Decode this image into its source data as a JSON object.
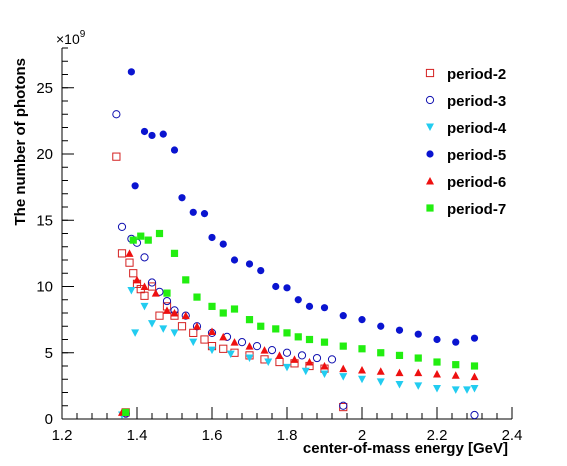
{
  "chart_data": {
    "type": "scatter",
    "title": "",
    "xlabel": "center-of-mass energy [GeV]",
    "ylabel": "The number of photons",
    "y_multiplier_label": "×10",
    "y_multiplier_exponent": "9",
    "xlim": [
      1.2,
      2.4
    ],
    "ylim": [
      0,
      28
    ],
    "x_ticks": [
      "1.2",
      "1.4",
      "1.6",
      "1.8",
      "2",
      "2.2",
      "2.4"
    ],
    "y_ticks": [
      "0",
      "5",
      "10",
      "15",
      "20",
      "25"
    ],
    "legend_position": "top-right",
    "grid": false,
    "series": [
      {
        "name": "period-2",
        "marker": "open-square",
        "color": "#d42020",
        "x": [
          1.345,
          1.36,
          1.37,
          1.38,
          1.39,
          1.4,
          1.41,
          1.42,
          1.44,
          1.46,
          1.48,
          1.5,
          1.52,
          1.55,
          1.58,
          1.6,
          1.63,
          1.66,
          1.7,
          1.74,
          1.78,
          1.82,
          1.86,
          1.9,
          1.95
        ],
        "y": [
          19.8,
          12.5,
          0.5,
          11.8,
          11.0,
          10.2,
          9.8,
          9.3,
          10.0,
          7.8,
          8.5,
          7.8,
          7.0,
          6.5,
          6.0,
          5.5,
          5.3,
          5.0,
          4.8,
          4.5,
          4.3,
          4.2,
          4.0,
          3.8,
          0.9
        ]
      },
      {
        "name": "period-3",
        "marker": "open-circle",
        "color": "#1010b0",
        "x": [
          1.345,
          1.36,
          1.37,
          1.385,
          1.4,
          1.42,
          1.44,
          1.46,
          1.48,
          1.5,
          1.53,
          1.56,
          1.6,
          1.64,
          1.68,
          1.72,
          1.76,
          1.8,
          1.84,
          1.88,
          1.92,
          1.95,
          2.3
        ],
        "y": [
          23.0,
          14.5,
          0.4,
          13.6,
          13.3,
          12.2,
          10.3,
          9.6,
          8.9,
          8.2,
          7.8,
          7.0,
          6.5,
          6.2,
          5.8,
          5.5,
          5.2,
          5.0,
          4.8,
          4.6,
          4.5,
          1.0,
          0.3
        ]
      },
      {
        "name": "period-4",
        "marker": "down-triangle",
        "color": "#22ccf0",
        "x": [
          1.36,
          1.385,
          1.395,
          1.42,
          1.44,
          1.47,
          1.5,
          1.55,
          1.6,
          1.65,
          1.7,
          1.75,
          1.8,
          1.85,
          1.9,
          1.95,
          2.0,
          2.05,
          2.1,
          2.15,
          2.2,
          2.25,
          2.28,
          2.3
        ],
        "y": [
          0.3,
          9.7,
          6.5,
          8.5,
          7.2,
          6.8,
          6.5,
          5.8,
          5.2,
          4.9,
          4.6,
          4.3,
          3.9,
          3.6,
          3.4,
          3.2,
          3.0,
          2.8,
          2.6,
          2.5,
          2.3,
          2.2,
          2.2,
          2.3
        ]
      },
      {
        "name": "period-5",
        "marker": "filled-circle",
        "color": "#0a14d0",
        "x": [
          1.385,
          1.395,
          1.42,
          1.44,
          1.47,
          1.5,
          1.52,
          1.55,
          1.58,
          1.6,
          1.63,
          1.66,
          1.7,
          1.73,
          1.77,
          1.8,
          1.83,
          1.86,
          1.9,
          1.95,
          2.0,
          2.05,
          2.1,
          2.15,
          2.2,
          2.25,
          2.3
        ],
        "y": [
          26.2,
          17.6,
          21.7,
          21.4,
          21.5,
          20.3,
          16.7,
          15.6,
          15.5,
          13.7,
          13.2,
          12.0,
          11.7,
          11.2,
          10.0,
          9.9,
          9.0,
          8.5,
          8.4,
          7.8,
          7.5,
          7.0,
          6.7,
          6.4,
          6.0,
          5.8,
          6.1
        ]
      },
      {
        "name": "period-6",
        "marker": "up-triangle",
        "color": "#ee1010",
        "x": [
          1.36,
          1.38,
          1.4,
          1.42,
          1.45,
          1.48,
          1.5,
          1.53,
          1.56,
          1.6,
          1.63,
          1.66,
          1.7,
          1.74,
          1.78,
          1.82,
          1.86,
          1.9,
          1.95,
          2.0,
          2.05,
          2.1,
          2.15,
          2.2,
          2.25,
          2.3
        ],
        "y": [
          0.5,
          12.5,
          10.5,
          10.0,
          9.5,
          8.2,
          8.0,
          7.8,
          7.0,
          6.6,
          6.2,
          5.8,
          5.5,
          5.2,
          4.8,
          4.5,
          4.3,
          4.0,
          3.8,
          3.7,
          3.6,
          3.5,
          3.5,
          3.4,
          3.3,
          3.2
        ]
      },
      {
        "name": "period-7",
        "marker": "filled-square",
        "color": "#22ee10",
        "x": [
          1.37,
          1.39,
          1.41,
          1.43,
          1.46,
          1.48,
          1.5,
          1.53,
          1.56,
          1.6,
          1.63,
          1.66,
          1.7,
          1.73,
          1.77,
          1.8,
          1.83,
          1.86,
          1.9,
          1.95,
          2.0,
          2.05,
          2.1,
          2.15,
          2.2,
          2.25,
          2.3
        ],
        "y": [
          0.5,
          13.5,
          13.8,
          13.5,
          14.0,
          9.5,
          12.5,
          10.5,
          9.2,
          8.5,
          8.0,
          8.3,
          7.5,
          7.0,
          6.8,
          6.5,
          6.2,
          6.0,
          5.8,
          5.5,
          5.3,
          5.0,
          4.8,
          4.6,
          4.3,
          4.1,
          4.0
        ]
      }
    ]
  }
}
